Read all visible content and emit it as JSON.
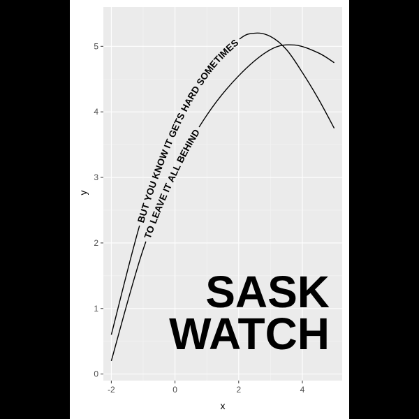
{
  "chart_data": {
    "type": "line",
    "xlabel": "x",
    "ylabel": "y",
    "xlim": [
      -2.25,
      5.25
    ],
    "ylim": [
      -0.1,
      5.6
    ],
    "x_ticks": [
      -2,
      0,
      2,
      4
    ],
    "y_ticks": [
      0,
      1,
      2,
      3,
      4,
      5
    ],
    "grid": true,
    "series": [
      {
        "x": [
          -2,
          -1,
          0,
          1,
          2,
          2.5,
          3,
          3.5,
          4,
          4.5,
          5
        ],
        "y": [
          0.6,
          2.45,
          3.75,
          4.6,
          5.1,
          5.2,
          5.15,
          4.95,
          4.6,
          4.2,
          3.75
        ],
        "label_text": "BUT YOU KNOW IT GETS HARD SOMETIMES"
      },
      {
        "x": [
          -2,
          -1,
          0,
          1,
          2,
          3,
          3.75,
          4.5,
          5
        ],
        "y": [
          0.2,
          1.9,
          3.1,
          3.95,
          4.55,
          4.95,
          5.02,
          4.9,
          4.75
        ],
        "label_text": "TO LEAVE IT ALL BEHIND"
      }
    ],
    "annotation": [
      "SASK",
      "WATCH"
    ]
  }
}
